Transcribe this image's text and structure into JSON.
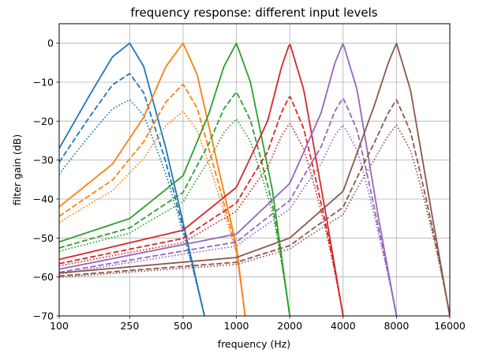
{
  "chart_data": {
    "type": "line",
    "title": "frequency response: different input levels",
    "xlabel": "frequency (Hz)",
    "ylabel": "filter gain (dB)",
    "x_scale": "log",
    "xlim": [
      100,
      16000
    ],
    "ylim": [
      -70,
      5
    ],
    "xticks": [
      100,
      250,
      500,
      1000,
      2000,
      4000,
      8000,
      16000
    ],
    "xtick_labels": [
      "100",
      "250",
      "500",
      "1000",
      "2000",
      "4000",
      "8000",
      "16000"
    ],
    "yticks": [
      0,
      -10,
      -20,
      -30,
      -40,
      -50,
      -60,
      -70
    ],
    "ytick_labels": [
      "0",
      "−10",
      "−20",
      "−30",
      "−40",
      "−50",
      "−60",
      "−70"
    ],
    "grid": true,
    "line_styles": [
      "solid",
      "dashed",
      "dotted"
    ],
    "filters": [
      {
        "center_hz": 250,
        "color": "#1f77b4",
        "peak_db": [
          0,
          -7.8,
          -14.5
        ],
        "points": [
          [
            100,
            -27
          ],
          [
            150,
            -13
          ],
          [
            200,
            -3.5
          ],
          [
            250,
            0
          ],
          [
            300,
            -6
          ],
          [
            400,
            -27
          ],
          [
            500,
            -46
          ],
          [
            660,
            -70
          ]
        ]
      },
      {
        "center_hz": 500,
        "color": "#ff7f0e",
        "peak_db": [
          0,
          -10.5,
          -17.5
        ],
        "points": [
          [
            100,
            -42
          ],
          [
            200,
            -31
          ],
          [
            300,
            -19
          ],
          [
            400,
            -6
          ],
          [
            500,
            0
          ],
          [
            600,
            -8
          ],
          [
            800,
            -33
          ],
          [
            1000,
            -52
          ],
          [
            1120,
            -70
          ]
        ]
      },
      {
        "center_hz": 1000,
        "color": "#2ca02c",
        "peak_db": [
          0,
          -12.5,
          -19.5
        ],
        "points": [
          [
            100,
            -51
          ],
          [
            250,
            -45
          ],
          [
            500,
            -34
          ],
          [
            700,
            -18
          ],
          [
            850,
            -6
          ],
          [
            1000,
            0
          ],
          [
            1200,
            -10
          ],
          [
            1600,
            -38
          ],
          [
            2000,
            -70
          ]
        ]
      },
      {
        "center_hz": 2000,
        "color": "#d62728",
        "peak_db": [
          0,
          -13.5,
          -20.5
        ],
        "points": [
          [
            100,
            -55.5
          ],
          [
            500,
            -48
          ],
          [
            1000,
            -37
          ],
          [
            1500,
            -20
          ],
          [
            1800,
            -6
          ],
          [
            2000,
            0
          ],
          [
            2400,
            -12
          ],
          [
            3200,
            -44
          ],
          [
            4000,
            -70
          ]
        ]
      },
      {
        "center_hz": 4000,
        "color": "#9467bd",
        "peak_db": [
          0,
          -14,
          -21
        ],
        "points": [
          [
            100,
            -58
          ],
          [
            1000,
            -49
          ],
          [
            2000,
            -36
          ],
          [
            3000,
            -18
          ],
          [
            3600,
            -5
          ],
          [
            4000,
            0
          ],
          [
            4800,
            -12
          ],
          [
            6400,
            -46
          ],
          [
            8000,
            -70
          ]
        ]
      },
      {
        "center_hz": 8000,
        "color": "#8c564b",
        "peak_db": [
          0,
          -14.5,
          -21
        ],
        "points": [
          [
            100,
            -59
          ],
          [
            1000,
            -55
          ],
          [
            2000,
            -50
          ],
          [
            4000,
            -38
          ],
          [
            6000,
            -16
          ],
          [
            7200,
            -5
          ],
          [
            8000,
            0
          ],
          [
            9600,
            -12
          ],
          [
            12800,
            -45
          ],
          [
            16000,
            -70
          ]
        ]
      }
    ]
  }
}
